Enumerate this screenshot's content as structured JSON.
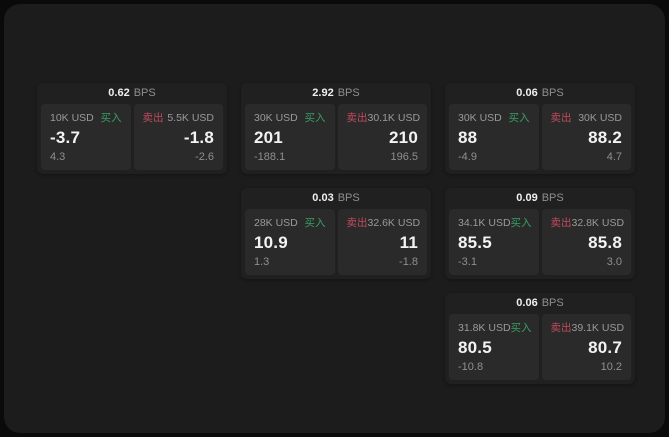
{
  "labels": {
    "buy": "买入",
    "sell": "卖出",
    "bps_unit": "BPS"
  },
  "colors": {
    "outer_bg": "#0a0a0a",
    "page_bg": "#1c1c1c",
    "card_bg": "#202020",
    "panel_bg": "#2a2a2a",
    "buy_green": "#3a9e64",
    "sell_red": "#c24a5e",
    "muted_gray": "#8f8f8f",
    "label_gray": "#9a9a9a",
    "price_white": "#f3f3f3"
  },
  "cards": [
    {
      "col": 0,
      "row": 0,
      "bps": "0.62",
      "buy": {
        "amount": "10K USD",
        "price": "-3.7",
        "delta": "4.3"
      },
      "sell": {
        "amount": "5.5K USD",
        "price": "-1.8",
        "delta": "-2.6"
      }
    },
    {
      "col": 1,
      "row": 0,
      "bps": "2.92",
      "buy": {
        "amount": "30K USD",
        "price": "201",
        "delta": "-188.1"
      },
      "sell": {
        "amount": "30.1K USD",
        "price": "210",
        "delta": "196.5"
      }
    },
    {
      "col": 2,
      "row": 0,
      "bps": "0.06",
      "buy": {
        "amount": "30K USD",
        "price": "88",
        "delta": "-4.9"
      },
      "sell": {
        "amount": "30K USD",
        "price": "88.2",
        "delta": "4.7"
      }
    },
    {
      "col": 1,
      "row": 1,
      "bps": "0.03",
      "buy": {
        "amount": "28K USD",
        "price": "10.9",
        "delta": "1.3"
      },
      "sell": {
        "amount": "32.6K USD",
        "price": "11",
        "delta": "-1.8"
      }
    },
    {
      "col": 2,
      "row": 1,
      "bps": "0.09",
      "buy": {
        "amount": "34.1K USD",
        "price": "85.5",
        "delta": "-3.1"
      },
      "sell": {
        "amount": "32.8K USD",
        "price": "85.8",
        "delta": "3.0"
      }
    },
    {
      "col": 2,
      "row": 2,
      "bps": "0.06",
      "buy": {
        "amount": "31.8K USD",
        "price": "80.5",
        "delta": "-10.8"
      },
      "sell": {
        "amount": "39.1K USD",
        "price": "80.7",
        "delta": "10.2"
      }
    }
  ]
}
